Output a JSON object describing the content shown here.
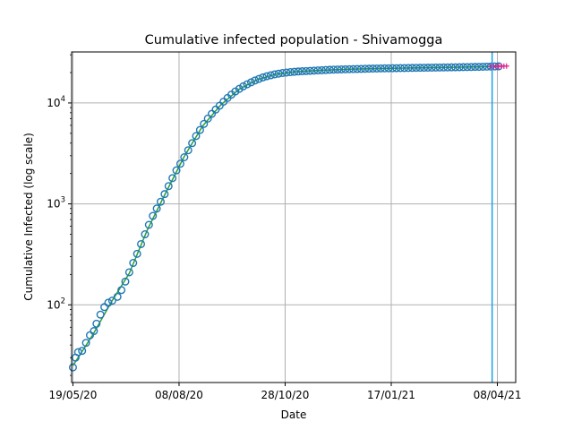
{
  "chart_data": {
    "type": "scatter",
    "title": "Cumulative infected population - Shivamogga",
    "xlabel": "Date",
    "ylabel": "Cumulative Infected (log scale)",
    "yscale": "log",
    "xlim": [
      "2020-05-18",
      "2021-04-22"
    ],
    "ylim": [
      17,
      32000
    ],
    "grid": true,
    "x_ticks": [
      {
        "date": "2020-05-19",
        "label": "19/05/20"
      },
      {
        "date": "2020-08-08",
        "label": "08/08/20"
      },
      {
        "date": "2020-10-28",
        "label": "28/10/20"
      },
      {
        "date": "2021-01-17",
        "label": "17/01/21"
      },
      {
        "date": "2021-04-08",
        "label": "08/04/21"
      }
    ],
    "y_ticks": [
      {
        "value": 100,
        "base": "10",
        "exp": "2"
      },
      {
        "value": 1000,
        "base": "10",
        "exp": "3"
      },
      {
        "value": 10000,
        "base": "10",
        "exp": "4"
      }
    ],
    "vertical_line": {
      "date": "2021-04-04",
      "color": "#1f9fe8"
    },
    "colors": {
      "observed_marker": "#1f77b4",
      "fit_line": "#2ca02c",
      "projection": "#e0218a",
      "grid": "#b0b0b0"
    },
    "series": [
      {
        "kind": "observed",
        "marker": "hollow-circle",
        "points": [
          [
            "2020-05-19",
            24
          ],
          [
            "2020-05-21",
            30
          ],
          [
            "2020-05-23",
            34
          ],
          [
            "2020-05-26",
            35
          ],
          [
            "2020-05-29",
            42
          ],
          [
            "2020-06-01",
            50
          ],
          [
            "2020-06-04",
            55
          ],
          [
            "2020-06-06",
            65
          ],
          [
            "2020-06-09",
            80
          ],
          [
            "2020-06-12",
            95
          ],
          [
            "2020-06-15",
            105
          ],
          [
            "2020-06-18",
            110
          ],
          [
            "2020-06-22",
            120
          ],
          [
            "2020-06-25",
            140
          ],
          [
            "2020-06-28",
            170
          ],
          [
            "2020-07-01",
            210
          ],
          [
            "2020-07-04",
            260
          ],
          [
            "2020-07-07",
            320
          ],
          [
            "2020-07-10",
            400
          ],
          [
            "2020-07-13",
            500
          ],
          [
            "2020-07-16",
            620
          ],
          [
            "2020-07-19",
            760
          ],
          [
            "2020-07-22",
            900
          ],
          [
            "2020-07-25",
            1050
          ],
          [
            "2020-07-28",
            1250
          ],
          [
            "2020-07-31",
            1500
          ],
          [
            "2020-08-03",
            1800
          ],
          [
            "2020-08-06",
            2150
          ],
          [
            "2020-08-09",
            2500
          ],
          [
            "2020-08-12",
            2900
          ],
          [
            "2020-08-15",
            3400
          ],
          [
            "2020-08-18",
            4000
          ],
          [
            "2020-08-21",
            4700
          ],
          [
            "2020-08-24",
            5400
          ],
          [
            "2020-08-27",
            6200
          ],
          [
            "2020-08-30",
            7000
          ],
          [
            "2020-09-02",
            7800
          ],
          [
            "2020-09-05",
            8600
          ],
          [
            "2020-09-08",
            9400
          ],
          [
            "2020-09-11",
            10300
          ],
          [
            "2020-09-14",
            11200
          ],
          [
            "2020-09-17",
            12100
          ],
          [
            "2020-09-20",
            13000
          ],
          [
            "2020-09-23",
            13800
          ],
          [
            "2020-09-26",
            14600
          ],
          [
            "2020-09-29",
            15300
          ],
          [
            "2020-10-02",
            16000
          ],
          [
            "2020-10-05",
            16700
          ],
          [
            "2020-10-08",
            17300
          ],
          [
            "2020-10-11",
            17900
          ],
          [
            "2020-10-14",
            18400
          ],
          [
            "2020-10-17",
            18800
          ],
          [
            "2020-10-20",
            19200
          ],
          [
            "2020-10-23",
            19500
          ],
          [
            "2020-10-26",
            19800
          ],
          [
            "2020-10-29",
            20000
          ],
          [
            "2020-11-01",
            20200
          ],
          [
            "2020-11-04",
            20350
          ],
          [
            "2020-11-07",
            20500
          ],
          [
            "2020-11-10",
            20600
          ],
          [
            "2020-11-13",
            20700
          ],
          [
            "2020-11-16",
            20800
          ],
          [
            "2020-11-19",
            20900
          ],
          [
            "2020-11-22",
            21000
          ],
          [
            "2020-11-25",
            21100
          ],
          [
            "2020-11-28",
            21200
          ],
          [
            "2020-12-01",
            21300
          ],
          [
            "2020-12-04",
            21400
          ],
          [
            "2020-12-07",
            21450
          ],
          [
            "2020-12-10",
            21500
          ],
          [
            "2020-12-13",
            21550
          ],
          [
            "2020-12-16",
            21600
          ],
          [
            "2020-12-19",
            21650
          ],
          [
            "2020-12-22",
            21700
          ],
          [
            "2020-12-25",
            21750
          ],
          [
            "2020-12-28",
            21800
          ],
          [
            "2020-12-31",
            21850
          ],
          [
            "2021-01-03",
            21900
          ],
          [
            "2021-01-06",
            21950
          ],
          [
            "2021-01-09",
            22000
          ],
          [
            "2021-01-12",
            22030
          ],
          [
            "2021-01-15",
            22060
          ],
          [
            "2021-01-18",
            22090
          ],
          [
            "2021-01-21",
            22120
          ],
          [
            "2021-01-24",
            22150
          ],
          [
            "2021-01-27",
            22180
          ],
          [
            "2021-01-30",
            22210
          ],
          [
            "2021-02-02",
            22240
          ],
          [
            "2021-02-05",
            22270
          ],
          [
            "2021-02-08",
            22300
          ],
          [
            "2021-02-11",
            22330
          ],
          [
            "2021-02-14",
            22360
          ],
          [
            "2021-02-17",
            22390
          ],
          [
            "2021-02-20",
            22420
          ],
          [
            "2021-02-23",
            22450
          ],
          [
            "2021-02-26",
            22480
          ],
          [
            "2021-03-01",
            22510
          ],
          [
            "2021-03-04",
            22540
          ],
          [
            "2021-03-07",
            22570
          ],
          [
            "2021-03-10",
            22600
          ],
          [
            "2021-03-13",
            22640
          ],
          [
            "2021-03-16",
            22680
          ],
          [
            "2021-03-19",
            22720
          ],
          [
            "2021-03-22",
            22760
          ],
          [
            "2021-03-25",
            22800
          ],
          [
            "2021-03-28",
            22850
          ],
          [
            "2021-03-31",
            22900
          ],
          [
            "2021-04-03",
            22950
          ],
          [
            "2021-04-06",
            23000
          ],
          [
            "2021-04-09",
            23050
          ]
        ]
      },
      {
        "kind": "fit",
        "line": "solid",
        "points": [
          [
            "2020-05-19",
            25
          ],
          [
            "2020-06-03",
            50
          ],
          [
            "2020-06-17",
            105
          ],
          [
            "2020-07-01",
            205
          ],
          [
            "2020-07-15",
            560
          ],
          [
            "2020-07-29",
            1300
          ],
          [
            "2020-08-12",
            2950
          ],
          [
            "2020-08-26",
            5900
          ],
          [
            "2020-09-09",
            9600
          ],
          [
            "2020-09-23",
            13700
          ],
          [
            "2020-10-07",
            17100
          ],
          [
            "2020-10-21",
            19300
          ],
          [
            "2020-11-04",
            20350
          ],
          [
            "2020-11-25",
            21100
          ],
          [
            "2020-12-16",
            21600
          ],
          [
            "2021-01-06",
            21950
          ],
          [
            "2021-01-27",
            22180
          ],
          [
            "2021-02-17",
            22390
          ],
          [
            "2021-03-10",
            22600
          ],
          [
            "2021-03-31",
            22900
          ],
          [
            "2021-04-10",
            23060
          ]
        ]
      },
      {
        "kind": "projection",
        "marker": "plus",
        "points": [
          [
            "2021-04-03",
            22950
          ],
          [
            "2021-04-05",
            22990
          ],
          [
            "2021-04-07",
            23030
          ],
          [
            "2021-04-09",
            23070
          ],
          [
            "2021-04-11",
            23110
          ],
          [
            "2021-04-13",
            23150
          ],
          [
            "2021-04-15",
            23190
          ]
        ]
      }
    ]
  }
}
